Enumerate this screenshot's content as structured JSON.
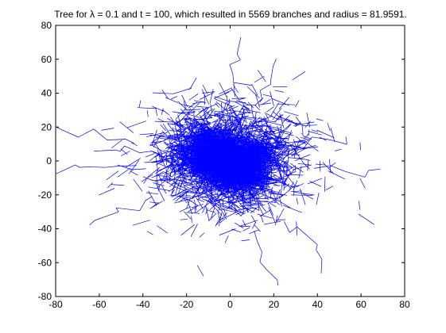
{
  "chart_data": {
    "type": "line",
    "title": "Tree for λ = 0.1 and t = 100, which resulted in 5569 branches and radius = 81.9591.",
    "xlabel": "",
    "ylabel": "",
    "xlim": [
      -80,
      80
    ],
    "ylim": [
      -80,
      80
    ],
    "x_ticks": [
      -80,
      -60,
      -40,
      -20,
      0,
      20,
      40,
      60,
      80
    ],
    "y_ticks": [
      -80,
      -60,
      -40,
      -20,
      0,
      20,
      40,
      60,
      80
    ],
    "x_tick_labels": [
      "-80",
      "-60",
      "-40",
      "-20",
      "0",
      "20",
      "40",
      "60",
      "80"
    ],
    "y_tick_labels": [
      "-80",
      "-60",
      "-40",
      "-20",
      "0",
      "20",
      "40",
      "60",
      "80"
    ],
    "grid": false,
    "legend": "none",
    "series_color": "#0000ff",
    "series": [
      {
        "description_points": "approximate extent of the random branching tree",
        "branches": 5569,
        "radius": 81.9591,
        "x_range": [
          -80,
          70
        ],
        "y_range": [
          -75,
          69
        ],
        "center": [
          0,
          0
        ],
        "outliers": [
          {
            "x": -80,
            "y": 19
          },
          {
            "x": 70,
            "y": -8
          },
          {
            "x": 21,
            "y": 60
          },
          {
            "x": 4,
            "y": 69
          },
          {
            "x": 45,
            "y": -65
          },
          {
            "x": 20,
            "y": -75
          },
          {
            "x": -65,
            "y": -38
          },
          {
            "x": -78,
            "y": -5
          },
          {
            "x": 55,
            "y": 15
          },
          {
            "x": -60,
            "y": 8
          }
        ]
      }
    ]
  }
}
